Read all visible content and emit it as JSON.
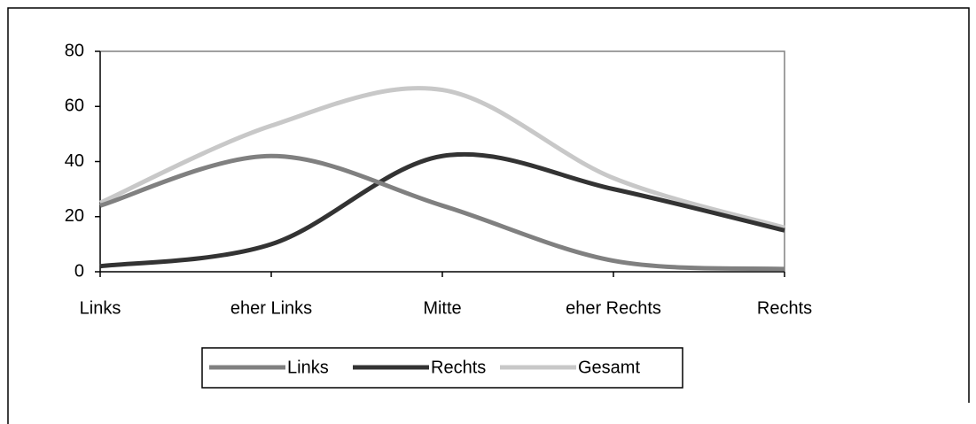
{
  "chart_data": {
    "type": "line",
    "categories": [
      "Links",
      "eher Links",
      "Mitte",
      "eher Rechts",
      "Rechts"
    ],
    "series": [
      {
        "name": "Links",
        "color": "#808080",
        "values": [
          24,
          42,
          24,
          4,
          1
        ]
      },
      {
        "name": "Rechts",
        "color": "#333333",
        "values": [
          2,
          10,
          42,
          30,
          15
        ]
      },
      {
        "name": "Gesamt",
        "color": "#c8c8c8",
        "values": [
          25,
          53,
          66,
          34,
          16
        ]
      }
    ],
    "ylim": [
      0,
      80
    ],
    "yticks": [
      0,
      20,
      40,
      60,
      80
    ],
    "smooth": true,
    "legend": "bottom"
  }
}
